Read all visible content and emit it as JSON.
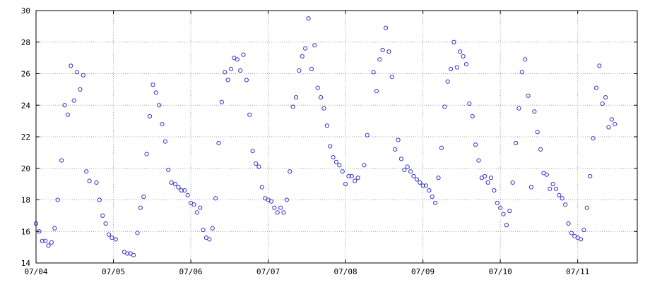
{
  "chart_data": {
    "type": "scatter",
    "title": "",
    "xlabel": "",
    "ylabel": "",
    "grid": true,
    "legend": "none",
    "marker_color": "#3333cc",
    "ylim": [
      14,
      30
    ],
    "yticks": [
      14,
      16,
      18,
      20,
      22,
      24,
      26,
      28,
      30
    ],
    "xlim": [
      0,
      7.77
    ],
    "xticks": [
      {
        "value": 0,
        "label": "07/04"
      },
      {
        "value": 1,
        "label": "07/05"
      },
      {
        "value": 2,
        "label": "07/06"
      },
      {
        "value": 3,
        "label": "07/07"
      },
      {
        "value": 4,
        "label": "07/08"
      },
      {
        "value": 5,
        "label": "07/09"
      },
      {
        "value": 6,
        "label": "07/10"
      },
      {
        "value": 7,
        "label": "07/11"
      }
    ],
    "x_unit": "days from 07/04 00:00",
    "series": [
      {
        "name": "",
        "points": [
          [
            0.0,
            16.5
          ],
          [
            0.04,
            16.0
          ],
          [
            0.08,
            15.4
          ],
          [
            0.12,
            15.4
          ],
          [
            0.16,
            15.1
          ],
          [
            0.2,
            15.3
          ],
          [
            0.24,
            16.2
          ],
          [
            0.28,
            18.0
          ],
          [
            0.33,
            20.5
          ],
          [
            0.37,
            24.0
          ],
          [
            0.41,
            23.4
          ],
          [
            0.45,
            26.5
          ],
          [
            0.49,
            24.3
          ],
          [
            0.53,
            26.1
          ],
          [
            0.57,
            25.0
          ],
          [
            0.61,
            25.9
          ],
          [
            0.65,
            19.8
          ],
          [
            0.69,
            19.2
          ],
          [
            0.78,
            19.1
          ],
          [
            0.82,
            18.0
          ],
          [
            0.86,
            17.0
          ],
          [
            0.9,
            16.5
          ],
          [
            0.94,
            15.8
          ],
          [
            0.98,
            15.6
          ],
          [
            1.03,
            15.5
          ],
          [
            1.14,
            14.7
          ],
          [
            1.18,
            14.6
          ],
          [
            1.22,
            14.6
          ],
          [
            1.26,
            14.5
          ],
          [
            1.31,
            15.9
          ],
          [
            1.35,
            17.5
          ],
          [
            1.39,
            18.2
          ],
          [
            1.43,
            20.9
          ],
          [
            1.47,
            23.3
          ],
          [
            1.51,
            25.3
          ],
          [
            1.55,
            24.8
          ],
          [
            1.59,
            24.0
          ],
          [
            1.63,
            22.8
          ],
          [
            1.67,
            21.7
          ],
          [
            1.71,
            19.9
          ],
          [
            1.75,
            19.1
          ],
          [
            1.8,
            19.0
          ],
          [
            1.84,
            18.8
          ],
          [
            1.88,
            18.6
          ],
          [
            1.92,
            18.6
          ],
          [
            1.96,
            18.3
          ],
          [
            2.0,
            17.8
          ],
          [
            2.04,
            17.7
          ],
          [
            2.08,
            17.2
          ],
          [
            2.12,
            17.5
          ],
          [
            2.16,
            16.1
          ],
          [
            2.2,
            15.6
          ],
          [
            2.24,
            15.5
          ],
          [
            2.28,
            16.2
          ],
          [
            2.32,
            18.1
          ],
          [
            2.36,
            21.6
          ],
          [
            2.4,
            24.2
          ],
          [
            2.44,
            26.1
          ],
          [
            2.48,
            25.6
          ],
          [
            2.52,
            26.3
          ],
          [
            2.56,
            27.0
          ],
          [
            2.6,
            26.9
          ],
          [
            2.64,
            26.2
          ],
          [
            2.68,
            27.2
          ],
          [
            2.72,
            25.6
          ],
          [
            2.76,
            23.4
          ],
          [
            2.8,
            21.1
          ],
          [
            2.84,
            20.3
          ],
          [
            2.88,
            20.1
          ],
          [
            2.92,
            18.8
          ],
          [
            2.96,
            18.1
          ],
          [
            3.0,
            18.0
          ],
          [
            3.04,
            17.9
          ],
          [
            3.08,
            17.5
          ],
          [
            3.12,
            17.2
          ],
          [
            3.16,
            17.5
          ],
          [
            3.2,
            17.2
          ],
          [
            3.24,
            18.0
          ],
          [
            3.28,
            19.8
          ],
          [
            3.32,
            23.9
          ],
          [
            3.36,
            24.5
          ],
          [
            3.4,
            26.2
          ],
          [
            3.44,
            27.1
          ],
          [
            3.48,
            27.6
          ],
          [
            3.52,
            29.5
          ],
          [
            3.56,
            26.3
          ],
          [
            3.6,
            27.8
          ],
          [
            3.64,
            25.1
          ],
          [
            3.68,
            24.5
          ],
          [
            3.72,
            23.8
          ],
          [
            3.76,
            22.7
          ],
          [
            3.8,
            21.4
          ],
          [
            3.84,
            20.7
          ],
          [
            3.88,
            20.4
          ],
          [
            3.92,
            20.2
          ],
          [
            3.96,
            19.8
          ],
          [
            4.0,
            19.0
          ],
          [
            4.04,
            19.5
          ],
          [
            4.08,
            19.5
          ],
          [
            4.12,
            19.2
          ],
          [
            4.16,
            19.4
          ],
          [
            4.24,
            20.2
          ],
          [
            4.28,
            22.1
          ],
          [
            4.36,
            26.1
          ],
          [
            4.4,
            24.9
          ],
          [
            4.44,
            26.9
          ],
          [
            4.48,
            27.5
          ],
          [
            4.52,
            28.9
          ],
          [
            4.56,
            27.4
          ],
          [
            4.6,
            25.8
          ],
          [
            4.64,
            21.2
          ],
          [
            4.68,
            21.8
          ],
          [
            4.72,
            20.6
          ],
          [
            4.76,
            19.9
          ],
          [
            4.8,
            20.1
          ],
          [
            4.84,
            19.8
          ],
          [
            4.88,
            19.5
          ],
          [
            4.92,
            19.3
          ],
          [
            4.96,
            19.1
          ],
          [
            5.0,
            18.9
          ],
          [
            5.04,
            18.9
          ],
          [
            5.08,
            18.6
          ],
          [
            5.12,
            18.2
          ],
          [
            5.16,
            17.8
          ],
          [
            5.2,
            19.4
          ],
          [
            5.24,
            21.3
          ],
          [
            5.28,
            23.9
          ],
          [
            5.32,
            25.5
          ],
          [
            5.36,
            26.3
          ],
          [
            5.4,
            28.0
          ],
          [
            5.44,
            26.4
          ],
          [
            5.48,
            27.4
          ],
          [
            5.52,
            27.1
          ],
          [
            5.56,
            26.6
          ],
          [
            5.6,
            24.1
          ],
          [
            5.64,
            23.3
          ],
          [
            5.68,
            21.5
          ],
          [
            5.72,
            20.5
          ],
          [
            5.76,
            19.4
          ],
          [
            5.8,
            19.5
          ],
          [
            5.84,
            19.1
          ],
          [
            5.88,
            19.4
          ],
          [
            5.92,
            18.6
          ],
          [
            5.96,
            17.8
          ],
          [
            6.0,
            17.5
          ],
          [
            6.04,
            17.1
          ],
          [
            6.08,
            16.4
          ],
          [
            6.12,
            17.3
          ],
          [
            6.16,
            19.1
          ],
          [
            6.2,
            21.6
          ],
          [
            6.24,
            23.8
          ],
          [
            6.28,
            26.1
          ],
          [
            6.32,
            26.9
          ],
          [
            6.36,
            24.6
          ],
          [
            6.4,
            18.8
          ],
          [
            6.44,
            23.6
          ],
          [
            6.48,
            22.3
          ],
          [
            6.52,
            21.2
          ],
          [
            6.56,
            19.7
          ],
          [
            6.6,
            19.6
          ],
          [
            6.64,
            18.7
          ],
          [
            6.68,
            19.0
          ],
          [
            6.72,
            18.7
          ],
          [
            6.76,
            18.3
          ],
          [
            6.8,
            18.1
          ],
          [
            6.84,
            17.7
          ],
          [
            6.88,
            16.5
          ],
          [
            6.92,
            15.9
          ],
          [
            6.96,
            15.7
          ],
          [
            7.0,
            15.6
          ],
          [
            7.04,
            15.5
          ],
          [
            7.08,
            16.1
          ],
          [
            7.12,
            17.5
          ],
          [
            7.16,
            19.5
          ],
          [
            7.2,
            21.9
          ],
          [
            7.24,
            25.1
          ],
          [
            7.28,
            26.5
          ],
          [
            7.32,
            24.1
          ],
          [
            7.36,
            24.5
          ],
          [
            7.4,
            22.6
          ],
          [
            7.44,
            23.1
          ],
          [
            7.48,
            22.8
          ]
        ]
      }
    ]
  }
}
